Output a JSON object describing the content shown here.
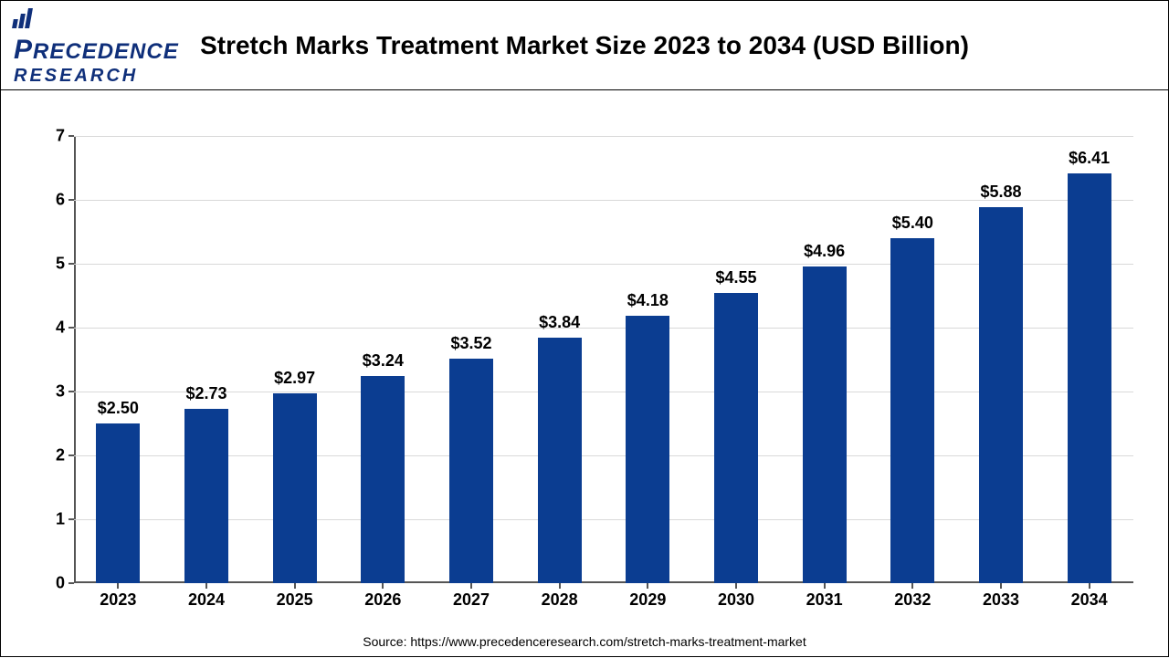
{
  "brand": {
    "line1": "RECEDENCE",
    "line2": "RESEARCH"
  },
  "title": "Stretch Marks Treatment Market Size 2023 to 2034 (USD Billion)",
  "source": "Source: https://www.precedenceresearch.com/stretch-marks-treatment-market",
  "chart": {
    "type": "bar",
    "ylim": [
      0,
      7
    ],
    "ytick_step": 1,
    "background_color": "#ffffff",
    "grid_color": "#d9d9d9",
    "axis_color": "#555555",
    "bar_color": "#0b3d91",
    "bar_width_ratio": 0.5,
    "label_fontsize": 18,
    "label_fontweight": 700,
    "value_prefix": "$",
    "categories": [
      "2023",
      "2024",
      "2025",
      "2026",
      "2027",
      "2028",
      "2029",
      "2030",
      "2031",
      "2032",
      "2033",
      "2034"
    ],
    "values": [
      2.5,
      2.73,
      2.97,
      3.24,
      3.52,
      3.84,
      4.18,
      4.55,
      4.96,
      5.4,
      5.88,
      6.41
    ]
  }
}
